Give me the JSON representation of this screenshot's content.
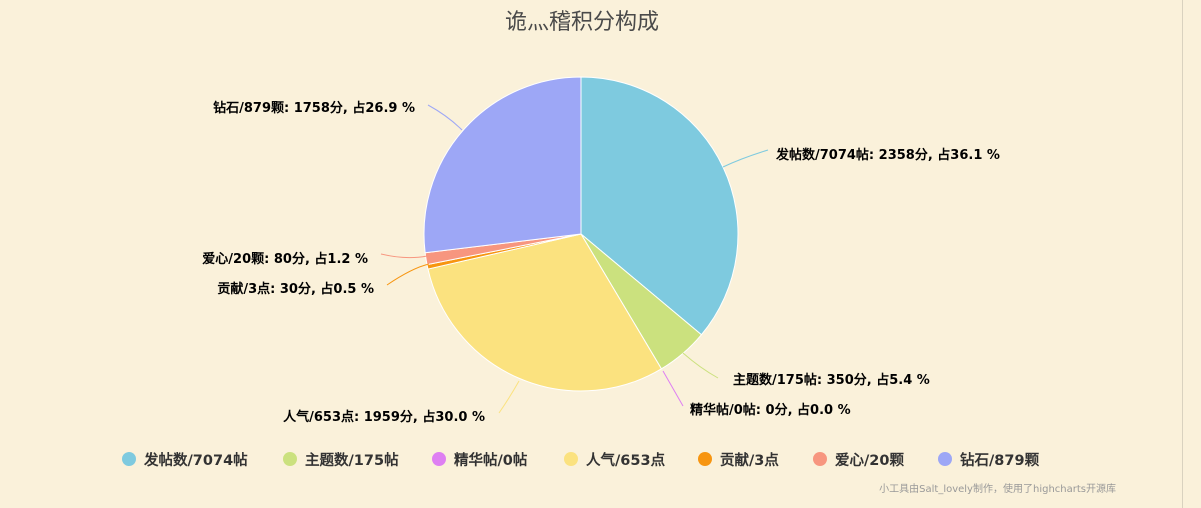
{
  "chart_data": {
    "type": "pie",
    "title": "诡灬稽积分构成",
    "credit": "小工具由Salt_lovely制作，使用了highcharts开源库",
    "series": [
      {
        "name": "发帖数/7074帖",
        "value": 2358,
        "percent": 36.1,
        "label": "发帖数/7074帖: 2358分, 占36.1 %",
        "color": "#7ecadf"
      },
      {
        "name": "主题数/175帖",
        "value": 350,
        "percent": 5.4,
        "label": "主题数/175帖: 350分, 占5.4 %",
        "color": "#cbe17e"
      },
      {
        "name": "精华帖/0帖",
        "value": 0,
        "percent": 0.0,
        "label": "精华帖/0帖: 0分, 占0.0 %",
        "color": "#de7ff2"
      },
      {
        "name": "人气/653点",
        "value": 1959,
        "percent": 30.0,
        "label": "人气/653点: 1959分, 占30.0 %",
        "color": "#fbe27f"
      },
      {
        "name": "贡献/3点",
        "value": 30,
        "percent": 0.5,
        "label": "贡献/3点: 30分, 占0.5 %",
        "color": "#f79510"
      },
      {
        "name": "爱心/20颗",
        "value": 80,
        "percent": 1.2,
        "label": "爱心/20颗: 80分, 占1.2 %",
        "color": "#f7967f"
      },
      {
        "name": "钻石/879颗",
        "value": 1758,
        "percent": 26.9,
        "label": "钻石/879颗: 1758分, 占26.9 %",
        "color": "#9da7f6"
      }
    ]
  }
}
